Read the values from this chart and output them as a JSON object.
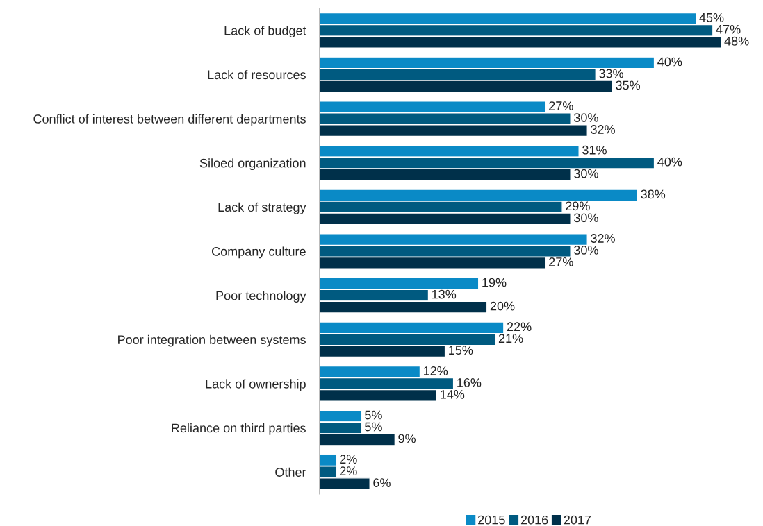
{
  "chart_data": {
    "type": "bar",
    "orientation": "horizontal",
    "legend": "bottom",
    "grid": false,
    "tick_labels": "y",
    "categories": [
      "Lack of budget",
      "Lack of resources",
      "Conflict of interest between different departments",
      "Siloed organization",
      "Lack of strategy",
      "Company culture",
      "Poor technology",
      "Poor integration between systems",
      "Lack of ownership",
      "Reliance on third parties",
      "Other"
    ],
    "series": [
      {
        "name": "2015",
        "color": "#0a8ac6",
        "values": [
          45,
          40,
          27,
          31,
          38,
          32,
          19,
          22,
          12,
          5,
          2
        ],
        "value_labels": [
          "45%",
          "40%",
          "27%",
          "31%",
          "38%",
          "32%",
          "19%",
          "22%",
          "12%",
          "5%",
          "2%"
        ]
      },
      {
        "name": "2016",
        "color": "#005a80",
        "values": [
          47,
          33,
          30,
          40,
          29,
          30,
          13,
          21,
          16,
          5,
          2
        ],
        "value_labels": [
          "47%",
          "33%",
          "30%",
          "40%",
          "29%",
          "30%",
          "13%",
          "21%",
          "16%",
          "5%",
          "2%"
        ]
      },
      {
        "name": "2017",
        "color": "#00304a",
        "values": [
          48,
          35,
          32,
          30,
          30,
          27,
          20,
          15,
          14,
          9,
          6
        ],
        "value_labels": [
          "48%",
          "35%",
          "32%",
          "30%",
          "30%",
          "27%",
          "20%",
          "15%",
          "14%",
          "9%",
          "6%"
        ]
      }
    ]
  }
}
